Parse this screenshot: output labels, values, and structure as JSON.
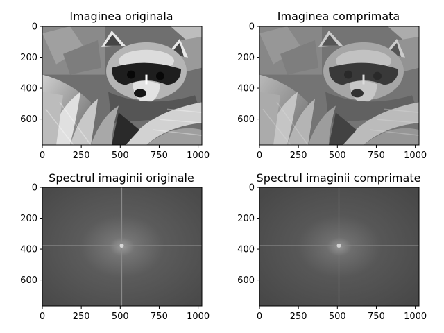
{
  "chart_data": [
    {
      "type": "image",
      "title": "Imaginea originala",
      "content": "raccoon-grayscale-photo",
      "xlim": [
        0,
        1024
      ],
      "ylim": [
        768,
        0
      ],
      "xticks": [
        0,
        250,
        500,
        750,
        1000
      ],
      "yticks": [
        0,
        200,
        400,
        600
      ]
    },
    {
      "type": "image",
      "title": "Imaginea comprimata",
      "content": "raccoon-grayscale-photo-compressed",
      "xlim": [
        0,
        1024
      ],
      "ylim": [
        768,
        0
      ],
      "xticks": [
        0,
        250,
        500,
        750,
        1000
      ],
      "yticks": [
        0,
        200,
        400,
        600
      ]
    },
    {
      "type": "image",
      "title": "Spectrul imaginii originale",
      "content": "fft-magnitude-spectrum",
      "xlim": [
        0,
        1024
      ],
      "ylim": [
        768,
        0
      ],
      "xticks": [
        0,
        250,
        500,
        750,
        1000
      ],
      "yticks": [
        0,
        200,
        400,
        600
      ]
    },
    {
      "type": "image",
      "title": "Spectrul imaginii comprimate",
      "content": "fft-magnitude-spectrum-compressed",
      "xlim": [
        0,
        1024
      ],
      "ylim": [
        768,
        0
      ],
      "xticks": [
        0,
        250,
        500,
        750,
        1000
      ],
      "yticks": [
        0,
        200,
        400,
        600
      ]
    }
  ]
}
